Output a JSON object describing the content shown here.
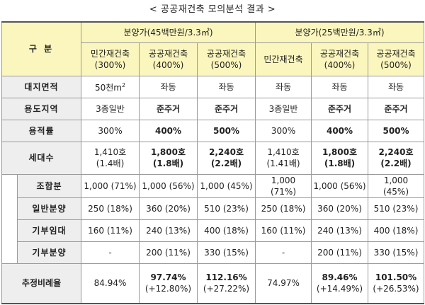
{
  "title": "< 공공재건축 모의분석 결과 >",
  "header": {
    "gubun": "구 분",
    "group1": "분양가(45백만원/3.3㎡)",
    "group2": "분양가(25백만원/3.3㎡)",
    "cols": [
      {
        "name": "민간재건축",
        "pct": "(300%)"
      },
      {
        "name": "공공재건축",
        "pct": "(400%)"
      },
      {
        "name": "공공재건축",
        "pct": "(500%)"
      },
      {
        "name": "민간재건축",
        "pct": ""
      },
      {
        "name": "공공재건축",
        "pct": "(400%)"
      },
      {
        "name": "공공재건축",
        "pct": "(500%)"
      }
    ]
  },
  "rows": {
    "area": {
      "label": "대지면적",
      "first": "50천m",
      "sup": "2",
      "values": [
        "좌동",
        "좌동",
        "좌동",
        "좌동",
        "좌동"
      ]
    },
    "zone": {
      "label": "용도지역",
      "values": [
        "3종일반",
        "준주거",
        "준주거",
        "3종일반",
        "준주거",
        "준주거"
      ]
    },
    "far": {
      "label": "용적률",
      "values": [
        "300%",
        "400%",
        "500%",
        "300%",
        "400%",
        "500%"
      ]
    },
    "units": {
      "label": "세대수",
      "values": [
        {
          "main": "1,410호",
          "sub": "(1.4배)"
        },
        {
          "main": "1,800호",
          "sub": "(1.8배)"
        },
        {
          "main": "2,240호",
          "sub": "(2.2배)"
        },
        {
          "main": "1,410호",
          "sub": "(1.41배)"
        },
        {
          "main": "1,800호",
          "sub": "(1.8배)"
        },
        {
          "main": "2,240호",
          "sub": "(2.2배)"
        }
      ]
    },
    "union": {
      "label": "조합분",
      "values": [
        "1,000 (71%)",
        "1,000 (56%)",
        "1,000 (45%)",
        "1,000 (71%)",
        "1,000 (56%)",
        "1,000 (45%)"
      ]
    },
    "general": {
      "label": "일반분양",
      "values": [
        "250 (18%)",
        "360 (20%)",
        "510 (23%)",
        "250 (18%)",
        "360 (20%)",
        "510 (23%)"
      ]
    },
    "rental": {
      "label": "기부임대",
      "values": [
        "160 (11%)",
        "240 (13%)",
        "400 (18%)",
        "160 (11%)",
        "240 (13%)",
        "400 (18%)"
      ]
    },
    "donate": {
      "label": "기부분양",
      "values": [
        "-",
        "200 (11%)",
        "330 (15%)",
        "-",
        "200 (11%)",
        "330 (15%)"
      ]
    },
    "ratio": {
      "label": "추정비례율",
      "values": [
        {
          "main": "84.94%",
          "sub": ""
        },
        {
          "main": "97.74%",
          "sub": "(+12.80%)"
        },
        {
          "main": "112.16%",
          "sub": "(+27.22%)"
        },
        {
          "main": "74.97%",
          "sub": ""
        },
        {
          "main": "89.46%",
          "sub": "(+14.49%)"
        },
        {
          "main": "101.50%",
          "sub": "(+26.53%)"
        }
      ]
    }
  }
}
